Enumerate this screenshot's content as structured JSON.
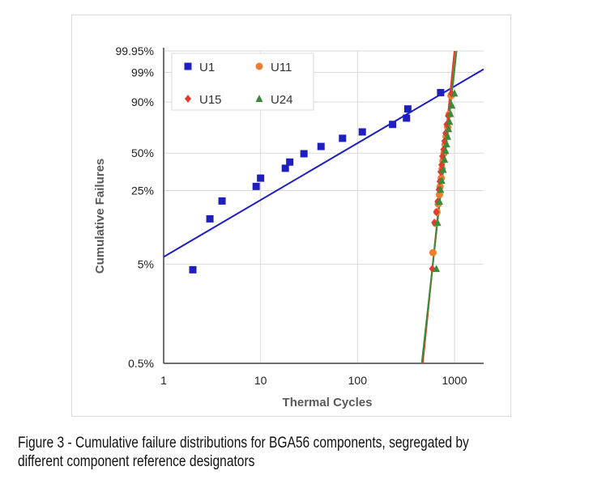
{
  "caption": "Figure 3 - Cumulative failure distributions for BGA56 components, segregated by different component reference designators",
  "chart_data": {
    "type": "scatter",
    "title": "",
    "xlabel": "Thermal Cycles",
    "ylabel": "Cumulative Failures",
    "xscale": "log",
    "yscale": "weibull-probability",
    "xlim": [
      1,
      2000
    ],
    "ylim": [
      0.5,
      99.95
    ],
    "x_ticks": [
      1,
      10,
      100,
      1000
    ],
    "x_tick_labels": [
      "1",
      "10",
      "100",
      "1000"
    ],
    "y_ticks": [
      0.5,
      5,
      25,
      50,
      90,
      99,
      99.95
    ],
    "y_tick_labels": [
      "0.5%",
      "5%",
      "25%",
      "50%",
      "90%",
      "99%",
      "99.95%"
    ],
    "grid": true,
    "legend_position": "top-left",
    "series": [
      {
        "name": "U1",
        "color": "#1f1fbf",
        "marker": "square",
        "points": [
          [
            2,
            4.4
          ],
          [
            3,
            13.8
          ],
          [
            4,
            20.2
          ],
          [
            9,
            27.2
          ],
          [
            10,
            32
          ],
          [
            18,
            38.5
          ],
          [
            20,
            43
          ],
          [
            28,
            49.5
          ],
          [
            42,
            55.5
          ],
          [
            70,
            62.5
          ],
          [
            112,
            68
          ],
          [
            230,
            74.3
          ],
          [
            320,
            79.3
          ],
          [
            330,
            85.8
          ],
          [
            720,
            94.3
          ]
        ],
        "fit": [
          [
            1,
            5.9
          ],
          [
            2000,
            99.3
          ]
        ]
      },
      {
        "name": "U11",
        "color": "#ed7d31",
        "marker": "circle",
        "points": [
          [
            600,
            6.5
          ],
          [
            640,
            12.5
          ],
          [
            660,
            16
          ],
          [
            680,
            19
          ],
          [
            700,
            23
          ],
          [
            710,
            27
          ],
          [
            730,
            32
          ],
          [
            745,
            38
          ],
          [
            760,
            44
          ],
          [
            780,
            50
          ],
          [
            800,
            57
          ],
          [
            820,
            64
          ],
          [
            850,
            72
          ],
          [
            880,
            82
          ],
          [
            920,
            93
          ]
        ],
        "fit": [
          [
            470,
            0.5
          ],
          [
            1010,
            99.95
          ]
        ]
      },
      {
        "name": "U15",
        "color": "#e03c31",
        "marker": "diamond",
        "points": [
          [
            590,
            4.5
          ],
          [
            620,
            12.7
          ],
          [
            650,
            16
          ],
          [
            670,
            20
          ],
          [
            690,
            25.5
          ],
          [
            705,
            30
          ],
          [
            720,
            36
          ],
          [
            735,
            41
          ],
          [
            750,
            47.5
          ],
          [
            770,
            53
          ],
          [
            790,
            60
          ],
          [
            810,
            67
          ],
          [
            830,
            74.3
          ],
          [
            860,
            81
          ],
          [
            930,
            94
          ]
        ],
        "fit": [
          [
            470,
            0.5
          ],
          [
            1000,
            99.95
          ]
        ]
      },
      {
        "name": "U24",
        "color": "#3a8c3a",
        "marker": "triangle",
        "points": [
          [
            650,
            4.5
          ],
          [
            670,
            12.7
          ],
          [
            700,
            20
          ],
          [
            720,
            25.5
          ],
          [
            740,
            30.5
          ],
          [
            765,
            37.5
          ],
          [
            790,
            45
          ],
          [
            810,
            52
          ],
          [
            830,
            57.5
          ],
          [
            850,
            64
          ],
          [
            870,
            70.5
          ],
          [
            890,
            76.5
          ],
          [
            910,
            82.5
          ],
          [
            940,
            88
          ],
          [
            1000,
            94
          ]
        ],
        "fit": [
          [
            460,
            0.5
          ],
          [
            1050,
            99.95
          ]
        ]
      }
    ]
  },
  "legend": {
    "items": [
      {
        "label": "U1",
        "color": "#1f1fbf",
        "marker": "square"
      },
      {
        "label": "U11",
        "color": "#ed7d31",
        "marker": "circle"
      },
      {
        "label": "U15",
        "color": "#e03c31",
        "marker": "diamond"
      },
      {
        "label": "U24",
        "color": "#3a8c3a",
        "marker": "triangle"
      }
    ]
  }
}
